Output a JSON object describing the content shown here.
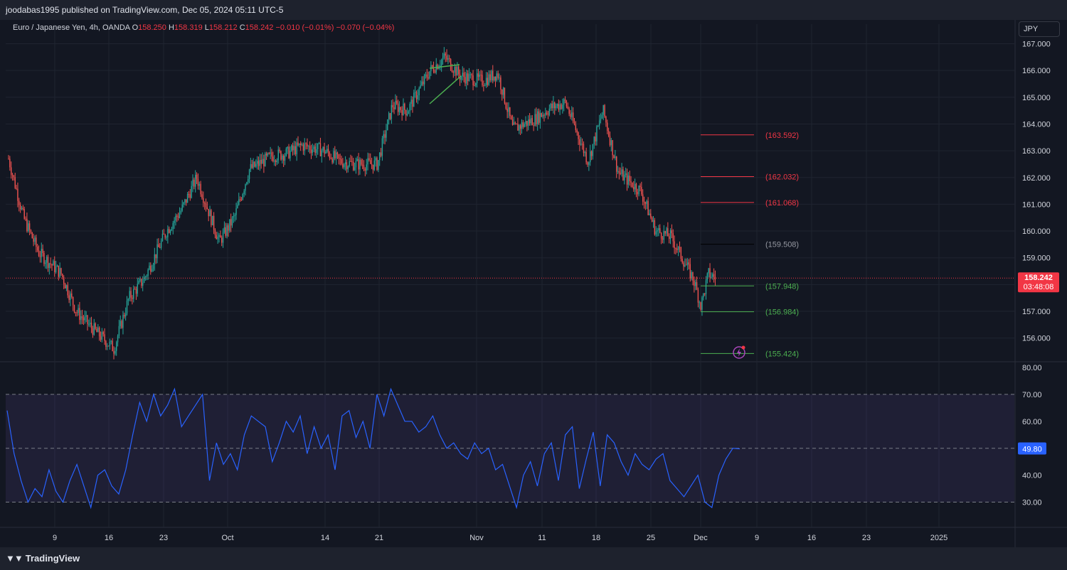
{
  "header": {
    "published": "joodabas1995 published on TradingView.com, Dec 05, 2024 05:11 UTC-5"
  },
  "legend": {
    "symbol": "Euro / Japanese Yen, 4h, OANDA",
    "o_label": "O",
    "o_value": "158.250",
    "h_label": "H",
    "h_value": "158.319",
    "l_label": "L",
    "l_value": "158.212",
    "c_label": "C",
    "c_value": "158.242",
    "change": "−0.010 (−0.01%)",
    "change2": "−0.070 (−0.04%)"
  },
  "currency_button": "JPY",
  "footer": {
    "brand": "TradingView"
  },
  "colors": {
    "background": "#131722",
    "up": "#26a69a",
    "down": "#ef5350",
    "rsi_line": "#2962ff",
    "rsi_band": "#7e57c2",
    "red_level": "#f23645",
    "green_level": "#4caf50"
  },
  "chart_data": [
    {
      "type": "candlestick",
      "symbol": "EURJPY",
      "interval": "4h",
      "ylim": [
        155.2,
        167.4
      ],
      "yticks": [
        "167.000",
        "166.000",
        "165.000",
        "164.000",
        "163.000",
        "162.000",
        "161.000",
        "160.000",
        "159.000",
        "158.000",
        "157.000",
        "156.000"
      ],
      "xticks": [
        "9",
        "16",
        "23",
        "Oct",
        "14",
        "21",
        "Nov",
        "11",
        "18",
        "25",
        "Dec",
        "9",
        "16",
        "23",
        "2025"
      ],
      "close_path": [
        {
          "date": "2024-09-02",
          "price": 162.7
        },
        {
          "date": "2024-09-04",
          "price": 160.5
        },
        {
          "date": "2024-09-06",
          "price": 159.2
        },
        {
          "date": "2024-09-09",
          "price": 158.4
        },
        {
          "date": "2024-09-11",
          "price": 157.0
        },
        {
          "date": "2024-09-13",
          "price": 156.4
        },
        {
          "date": "2024-09-16",
          "price": 155.6
        },
        {
          "date": "2024-09-18",
          "price": 157.5
        },
        {
          "date": "2024-09-20",
          "price": 158.2
        },
        {
          "date": "2024-09-23",
          "price": 160.0
        },
        {
          "date": "2024-09-25",
          "price": 160.8
        },
        {
          "date": "2024-09-27",
          "price": 162.0
        },
        {
          "date": "2024-09-30",
          "price": 159.6
        },
        {
          "date": "2024-10-02",
          "price": 160.5
        },
        {
          "date": "2024-10-04",
          "price": 162.3
        },
        {
          "date": "2024-10-07",
          "price": 162.8
        },
        {
          "date": "2024-10-09",
          "price": 162.9
        },
        {
          "date": "2024-10-11",
          "price": 163.2
        },
        {
          "date": "2024-10-14",
          "price": 163.0
        },
        {
          "date": "2024-10-16",
          "price": 162.6
        },
        {
          "date": "2024-10-18",
          "price": 162.5
        },
        {
          "date": "2024-10-21",
          "price": 162.5
        },
        {
          "date": "2024-10-23",
          "price": 164.7
        },
        {
          "date": "2024-10-25",
          "price": 164.5
        },
        {
          "date": "2024-10-28",
          "price": 166.0
        },
        {
          "date": "2024-10-30",
          "price": 166.5
        },
        {
          "date": "2024-11-01",
          "price": 165.8
        },
        {
          "date": "2024-11-04",
          "price": 165.6
        },
        {
          "date": "2024-11-06",
          "price": 165.9
        },
        {
          "date": "2024-11-08",
          "price": 163.8
        },
        {
          "date": "2024-11-11",
          "price": 164.2
        },
        {
          "date": "2024-11-13",
          "price": 164.6
        },
        {
          "date": "2024-11-15",
          "price": 164.8
        },
        {
          "date": "2024-11-18",
          "price": 162.6
        },
        {
          "date": "2024-11-20",
          "price": 164.5
        },
        {
          "date": "2024-11-22",
          "price": 162.2
        },
        {
          "date": "2024-11-25",
          "price": 161.5
        },
        {
          "date": "2024-11-27",
          "price": 160.0
        },
        {
          "date": "2024-11-29",
          "price": 159.8
        },
        {
          "date": "2024-12-02",
          "price": 158.2
        },
        {
          "date": "2024-12-03",
          "price": 157.2
        },
        {
          "date": "2024-12-04",
          "price": 158.4
        },
        {
          "date": "2024-12-05",
          "price": 158.242
        }
      ],
      "price_levels": [
        {
          "label": "(163.592)",
          "value": 163.592,
          "color": "#f23645"
        },
        {
          "label": "(162.032)",
          "value": 162.032,
          "color": "#f23645"
        },
        {
          "label": "(161.068)",
          "value": 161.068,
          "color": "#f23645"
        },
        {
          "label": "(159.508)",
          "value": 159.508,
          "color": "#000000"
        },
        {
          "label": "(157.948)",
          "value": 157.948,
          "color": "#4caf50"
        },
        {
          "label": "(156.984)",
          "value": 156.984,
          "color": "#4caf50"
        },
        {
          "label": "(155.424)",
          "value": 155.424,
          "color": "#4caf50"
        }
      ],
      "last_price": {
        "label": "158.242",
        "countdown": "03:48:08",
        "value": 158.242
      }
    },
    {
      "type": "line",
      "indicator": "RSI",
      "ylim": [
        25,
        82
      ],
      "yticks": [
        "80.00",
        "70.00",
        "60.00",
        "50.00",
        "40.00",
        "30.00"
      ],
      "band": [
        30,
        70
      ],
      "midline": 50,
      "last_value": {
        "label": "49.80",
        "value": 49.8
      },
      "values": [
        64,
        48,
        38,
        30,
        35,
        32,
        42,
        34,
        30,
        38,
        44,
        36,
        28,
        40,
        42,
        36,
        33,
        42,
        55,
        67,
        60,
        70,
        62,
        66,
        72,
        58,
        62,
        66,
        70,
        38,
        52,
        44,
        48,
        42,
        55,
        62,
        60,
        58,
        45,
        52,
        60,
        56,
        62,
        48,
        58,
        50,
        55,
        42,
        62,
        64,
        54,
        60,
        50,
        70,
        62,
        72,
        66,
        60,
        60,
        56,
        58,
        62,
        55,
        50,
        52,
        48,
        46,
        52,
        48,
        50,
        42,
        44,
        36,
        28,
        40,
        45,
        36,
        48,
        52,
        38,
        55,
        58,
        35,
        46,
        56,
        36,
        55,
        52,
        45,
        40,
        48,
        44,
        42,
        46,
        48,
        38,
        35,
        32,
        36,
        40,
        30,
        28,
        40,
        46,
        50,
        49.8
      ]
    }
  ]
}
